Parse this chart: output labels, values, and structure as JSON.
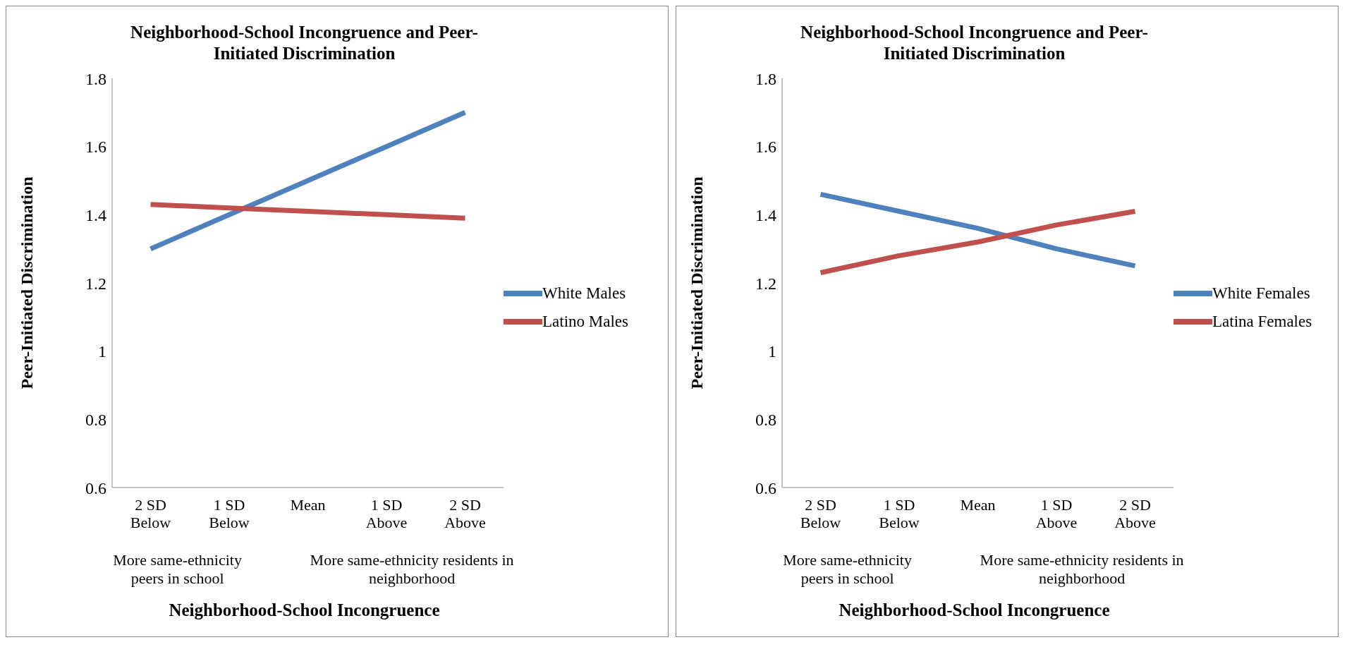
{
  "chart_data": [
    {
      "type": "line",
      "title": "Neighborhood-School Incongruence and Peer-Initiated Discrimination",
      "xlabel": "Neighborhood-School Incongruence",
      "ylabel": "Peer-Initiated Discrimination",
      "categories": [
        "2 SD Below",
        "1 SD Below",
        "Mean",
        "1 SD Above",
        "2 SD Above"
      ],
      "series": [
        {
          "name": "White Males",
          "color": "#4f81bd",
          "values": [
            1.3,
            1.4,
            1.5,
            1.6,
            1.7
          ]
        },
        {
          "name": "Latino Males",
          "color": "#c0504d",
          "values": [
            1.43,
            1.42,
            1.41,
            1.4,
            1.39
          ]
        }
      ],
      "ylim": [
        0.6,
        1.8
      ],
      "yticks": [
        0.6,
        0.8,
        1,
        1.2,
        1.4,
        1.6,
        1.8
      ],
      "legend": "right",
      "marker": "none",
      "grid": false,
      "annotations": [
        "More same-ethnicity peers in school",
        "More same-ethnicity residents in neighborhood"
      ]
    },
    {
      "type": "line",
      "title": "Neighborhood-School Incongruence and Peer-Initiated Discrimination",
      "xlabel": "Neighborhood-School Incongruence",
      "ylabel": "Peer-Initiated Discrimination",
      "categories": [
        "2 SD Below",
        "1 SD Below",
        "Mean",
        "1 SD Above",
        "2 SD Above"
      ],
      "series": [
        {
          "name": "White Females",
          "color": "#4f81bd",
          "values": [
            1.46,
            1.41,
            1.36,
            1.3,
            1.25
          ]
        },
        {
          "name": "Latina Females",
          "color": "#c0504d",
          "values": [
            1.23,
            1.28,
            1.32,
            1.37,
            1.41
          ]
        }
      ],
      "ylim": [
        0.6,
        1.8
      ],
      "yticks": [
        0.6,
        0.8,
        1,
        1.2,
        1.4,
        1.6,
        1.8
      ],
      "legend": "right",
      "marker": "none",
      "grid": false,
      "annotations": [
        "More same-ethnicity peers in school",
        "More same-ethnicity residents in neighborhood"
      ]
    }
  ]
}
